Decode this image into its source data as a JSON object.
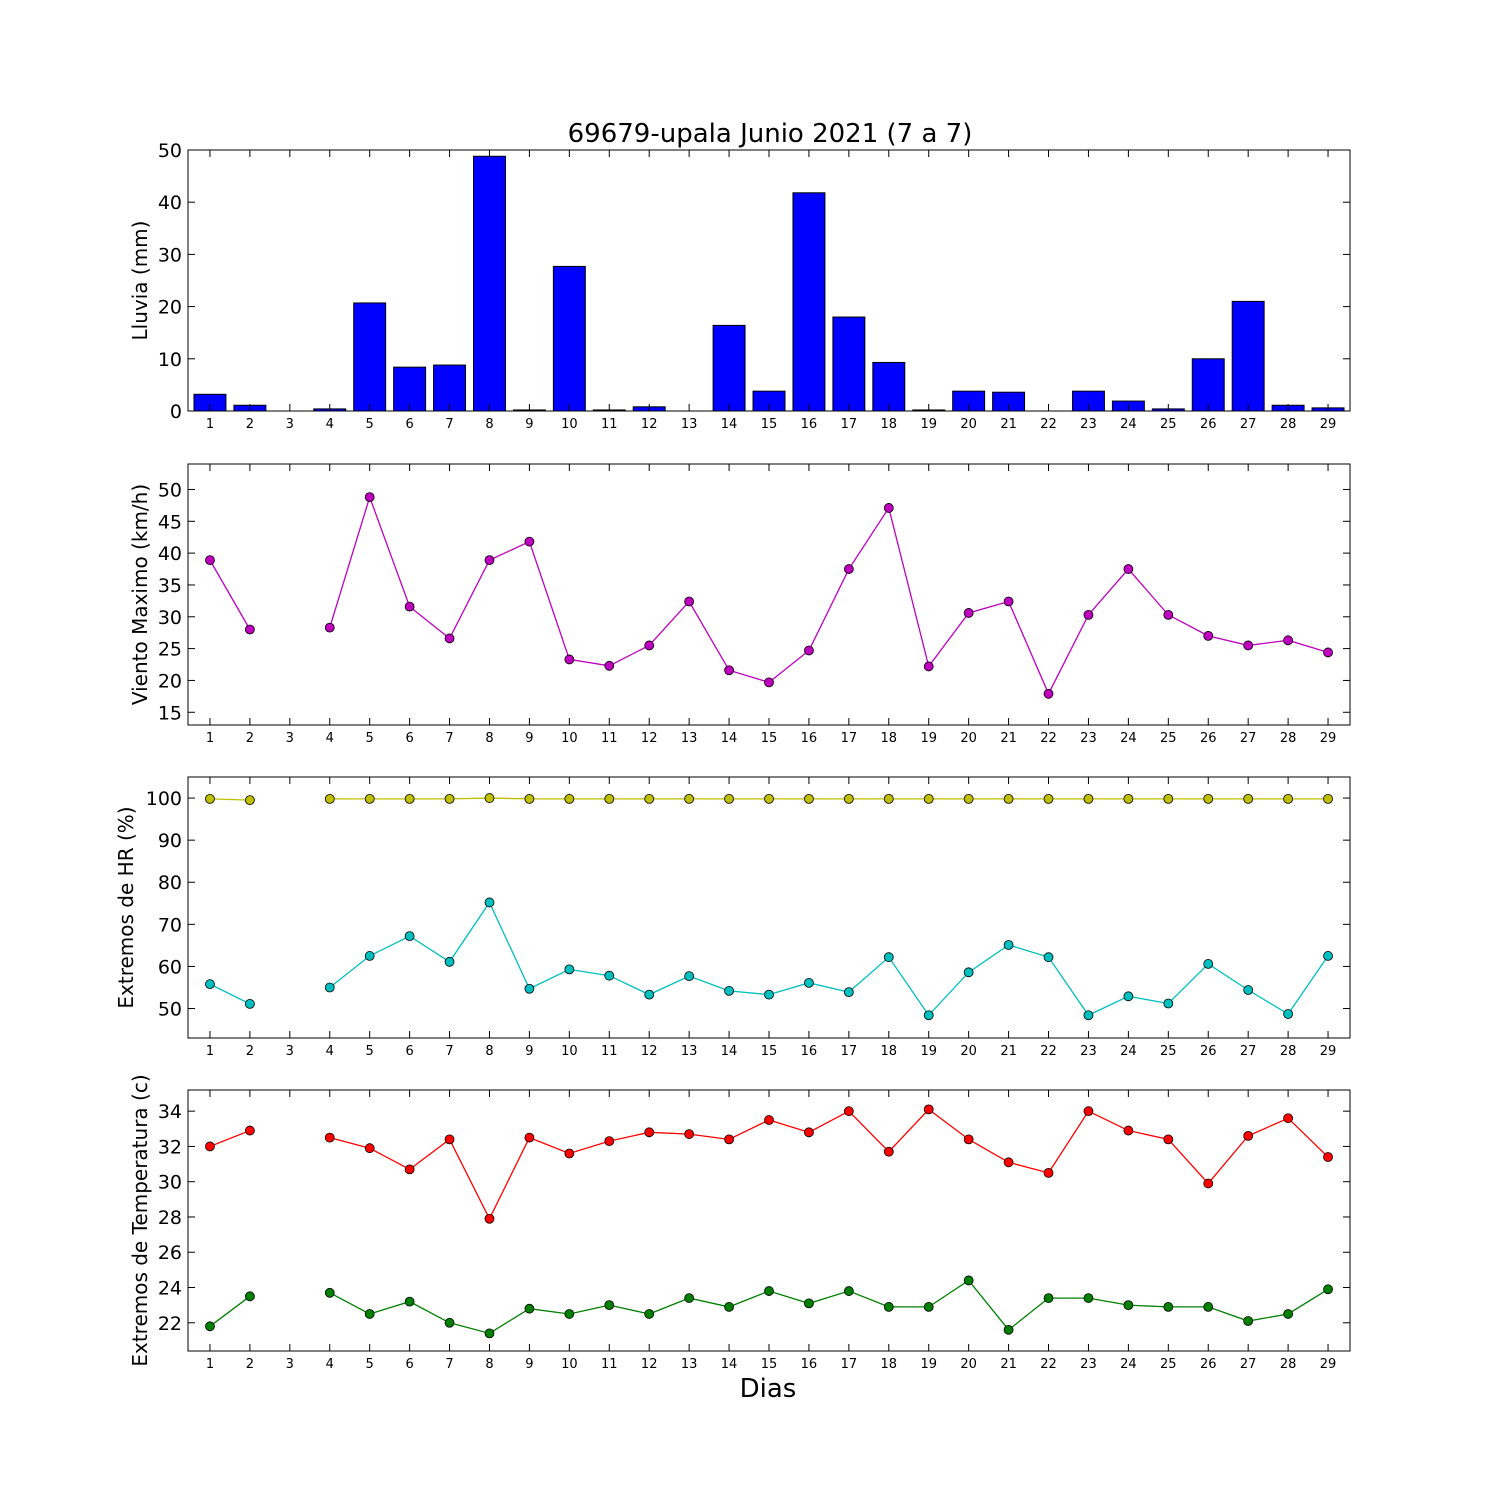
{
  "title": "69679-upala Junio 2021  (7 a 7)",
  "xlabel": "Dias",
  "days": [
    1,
    2,
    3,
    4,
    5,
    6,
    7,
    8,
    9,
    10,
    11,
    12,
    13,
    14,
    15,
    16,
    17,
    18,
    19,
    20,
    21,
    22,
    23,
    24,
    25,
    26,
    27,
    28,
    29
  ],
  "chart_data": [
    {
      "type": "bar",
      "ylabel": "Lluvia (mm)",
      "ylim": [
        0,
        50
      ],
      "yticks": [
        0,
        10,
        20,
        30,
        40,
        50
      ],
      "grid": false,
      "series": [
        {
          "color": "#0000ff",
          "values": [
            3.2,
            1.1,
            0,
            0.4,
            20.7,
            8.4,
            8.8,
            48.8,
            0.2,
            27.7,
            0.2,
            0.8,
            0,
            16.4,
            3.8,
            41.8,
            18.0,
            9.3,
            0.2,
            3.8,
            3.6,
            0,
            3.8,
            1.9,
            0.4,
            10.0,
            21.0,
            1.1,
            0.6
          ]
        }
      ]
    },
    {
      "type": "line",
      "ylabel": "Viento Maximo (km/h)",
      "ylim": [
        13,
        54
      ],
      "yticks": [
        15,
        20,
        25,
        30,
        35,
        40,
        45,
        50
      ],
      "grid": false,
      "series": [
        {
          "color": "#bf00bf",
          "values": [
            38.9,
            28.0,
            null,
            28.3,
            48.8,
            31.6,
            26.6,
            38.9,
            41.8,
            23.3,
            22.3,
            25.5,
            32.4,
            21.6,
            19.7,
            24.7,
            37.5,
            47.1,
            22.2,
            30.6,
            32.4,
            17.9,
            30.3,
            37.5,
            30.3,
            27.0,
            25.5,
            26.3,
            24.4
          ]
        }
      ]
    },
    {
      "type": "line",
      "ylabel": "Extremos de HR (%)",
      "ylim": [
        43,
        105
      ],
      "yticks": [
        50,
        60,
        70,
        80,
        90,
        100
      ],
      "grid": false,
      "series": [
        {
          "color": "#bfbf00",
          "values": [
            99.8,
            99.5,
            null,
            99.8,
            99.8,
            99.8,
            99.8,
            100,
            99.8,
            99.8,
            99.8,
            99.8,
            99.8,
            99.8,
            99.8,
            99.8,
            99.8,
            99.8,
            99.8,
            99.8,
            99.8,
            99.8,
            99.8,
            99.8,
            99.8,
            99.8,
            99.8,
            99.8,
            99.8
          ]
        },
        {
          "color": "#00bfbf",
          "values": [
            55.8,
            51.1,
            null,
            55.0,
            62.5,
            67.2,
            61.1,
            75.2,
            54.7,
            59.3,
            57.8,
            53.3,
            57.7,
            54.2,
            53.3,
            56.1,
            53.9,
            62.2,
            48.4,
            58.6,
            65.1,
            62.2,
            48.4,
            52.9,
            51.2,
            60.6,
            54.4,
            48.7,
            62.5
          ]
        }
      ]
    },
    {
      "type": "line",
      "ylabel": "Extremos de Temperatura (c)",
      "ylim": [
        20.4,
        35.2
      ],
      "yticks": [
        22,
        24,
        26,
        28,
        30,
        32,
        34
      ],
      "grid": false,
      "series": [
        {
          "color": "#ff0000",
          "values": [
            32.0,
            32.9,
            null,
            32.5,
            31.9,
            30.7,
            32.4,
            27.9,
            32.5,
            31.6,
            32.3,
            32.8,
            32.7,
            32.4,
            33.5,
            32.8,
            34.0,
            31.7,
            34.1,
            32.4,
            31.1,
            30.5,
            34.0,
            32.9,
            32.4,
            29.9,
            32.6,
            33.6,
            31.4
          ]
        },
        {
          "color": "#008000",
          "values": [
            21.8,
            23.5,
            null,
            23.7,
            22.5,
            23.2,
            22.0,
            21.4,
            22.8,
            22.5,
            23.0,
            22.5,
            23.4,
            22.9,
            23.8,
            23.1,
            23.8,
            22.9,
            22.9,
            24.4,
            21.6,
            23.4,
            23.4,
            23.0,
            22.9,
            22.9,
            22.1,
            22.5,
            23.9
          ]
        }
      ]
    }
  ]
}
